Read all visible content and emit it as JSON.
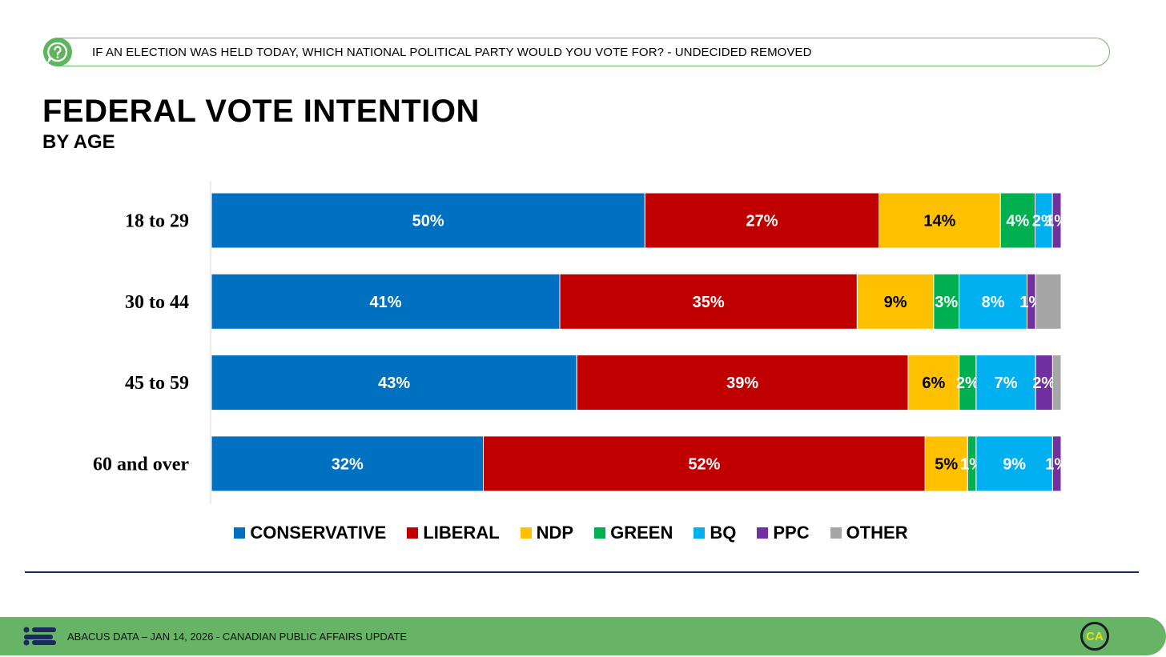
{
  "question": {
    "text": "IF AN ELECTION WAS HELD TODAY, WHICH NATIONAL POLITICAL PARTY WOULD YOU VOTE FOR? - UNDECIDED REMOVED",
    "icon": "question-icon"
  },
  "footer": {
    "text": "ABACUS DATA – JAN 14, 2026 - CANADIAN PUBLIC AFFAIRS UPDATE",
    "badge": "CA",
    "logo_icon": "abacus-logo-icon"
  },
  "chart_data": {
    "type": "bar",
    "orientation": "horizontal",
    "stacked": true,
    "title": "FEDERAL VOTE INTENTION",
    "subtitle": "BY AGE",
    "categories": [
      "18 to 29",
      "30 to 44",
      "45 to 59",
      "60 and over"
    ],
    "series": [
      {
        "name": "CONSERVATIVE",
        "color": "#0070C0",
        "label_color": "#ffffff",
        "values": [
          50,
          41,
          43,
          32
        ]
      },
      {
        "name": "LIBERAL",
        "color": "#C00000",
        "label_color": "#ffffff",
        "values": [
          27,
          35,
          39,
          52
        ]
      },
      {
        "name": "NDP",
        "color": "#FFC000",
        "label_color": "#000000",
        "values": [
          14,
          9,
          6,
          5
        ]
      },
      {
        "name": "GREEN",
        "color": "#00B050",
        "label_color": "#ffffff",
        "values": [
          4,
          3,
          2,
          1
        ]
      },
      {
        "name": "BQ",
        "color": "#00B0F0",
        "label_color": "#ffffff",
        "values": [
          2,
          8,
          7,
          9
        ]
      },
      {
        "name": "PPC",
        "color": "#7030A0",
        "label_color": "#ffffff",
        "values": [
          1,
          1,
          2,
          1
        ]
      },
      {
        "name": "OTHER",
        "color": "#A6A6A6",
        "label_color": "#ffffff",
        "values": [
          0,
          3,
          1,
          0
        ]
      }
    ],
    "data_labels": [
      [
        "50%",
        "27%",
        "14%",
        "4%",
        "2%",
        "1%",
        ""
      ],
      [
        "41%",
        "35%",
        "9%",
        "3%",
        "8%",
        "1%",
        ""
      ],
      [
        "43%",
        "39%",
        "6%",
        "2%",
        "7%",
        "2%",
        ""
      ],
      [
        "32%",
        "52%",
        "5%",
        "1%",
        "9%",
        "1%",
        ""
      ]
    ],
    "xlim": [
      0,
      100
    ],
    "legend_position": "bottom",
    "grid": false
  }
}
